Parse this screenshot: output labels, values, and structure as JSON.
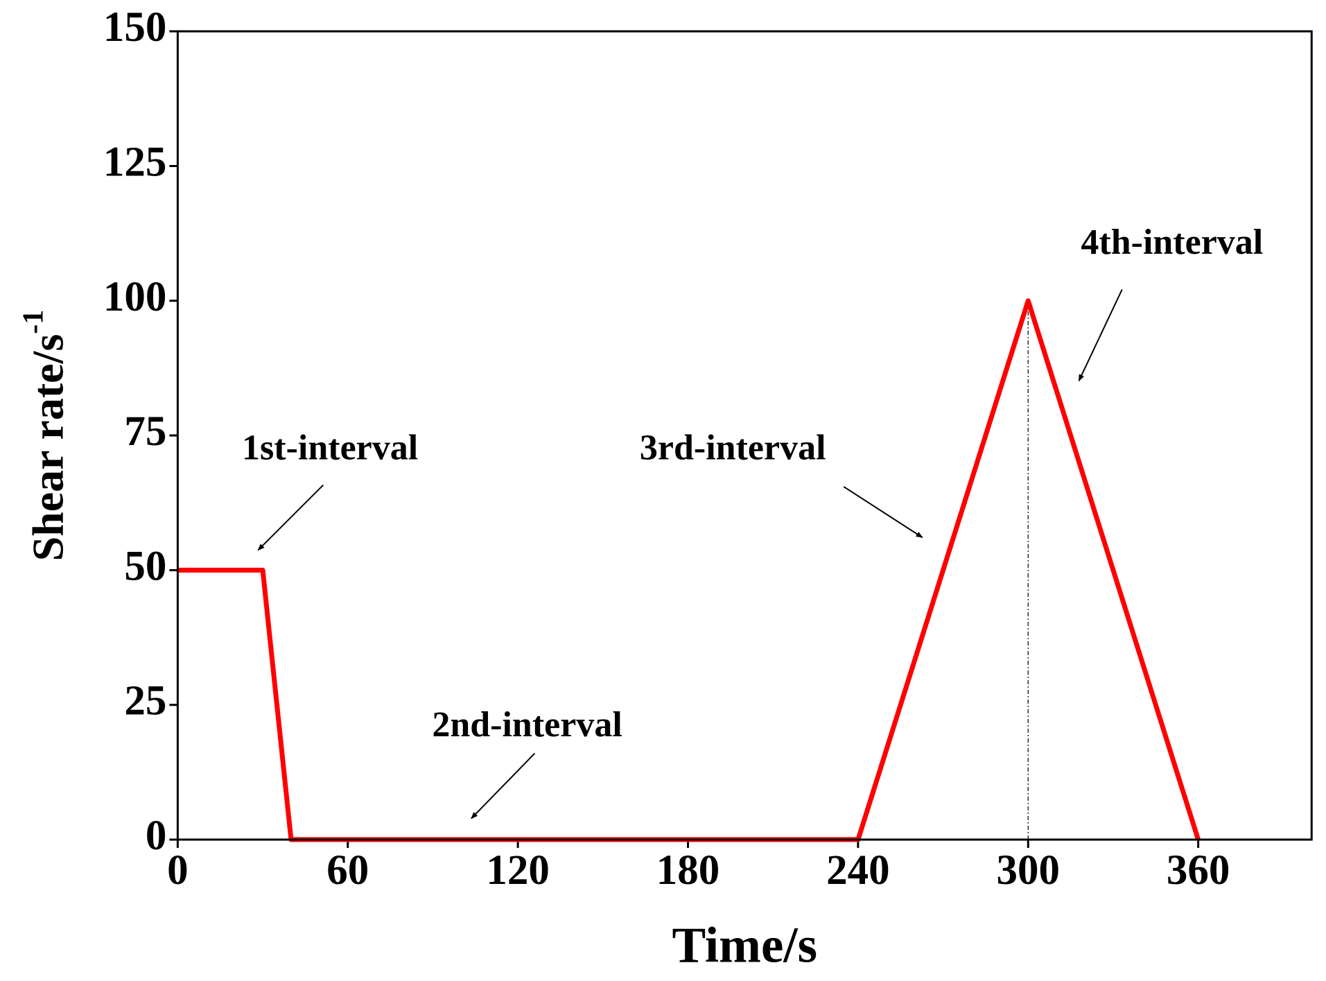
{
  "chart_data": {
    "type": "line",
    "x_label": "Time/s",
    "y_label": "Shear rate/s",
    "y_label_superscript": "-1",
    "x": [
      0,
      30,
      40,
      240,
      300,
      360
    ],
    "series": [
      {
        "color": "#ff0000",
        "values": [
          50,
          50,
          0,
          0,
          100,
          0
        ]
      }
    ],
    "xlim": [
      0,
      400
    ],
    "xticks": [
      0,
      60,
      120,
      180,
      240,
      300,
      360
    ],
    "ylim": [
      0,
      150
    ],
    "yticks": [
      0,
      25,
      50,
      75,
      100,
      125,
      150
    ],
    "vlines": [
      300
    ],
    "annotations": [
      "1st-interval",
      "2nd-interval",
      "3rd-interval",
      "4th-interval"
    ]
  }
}
